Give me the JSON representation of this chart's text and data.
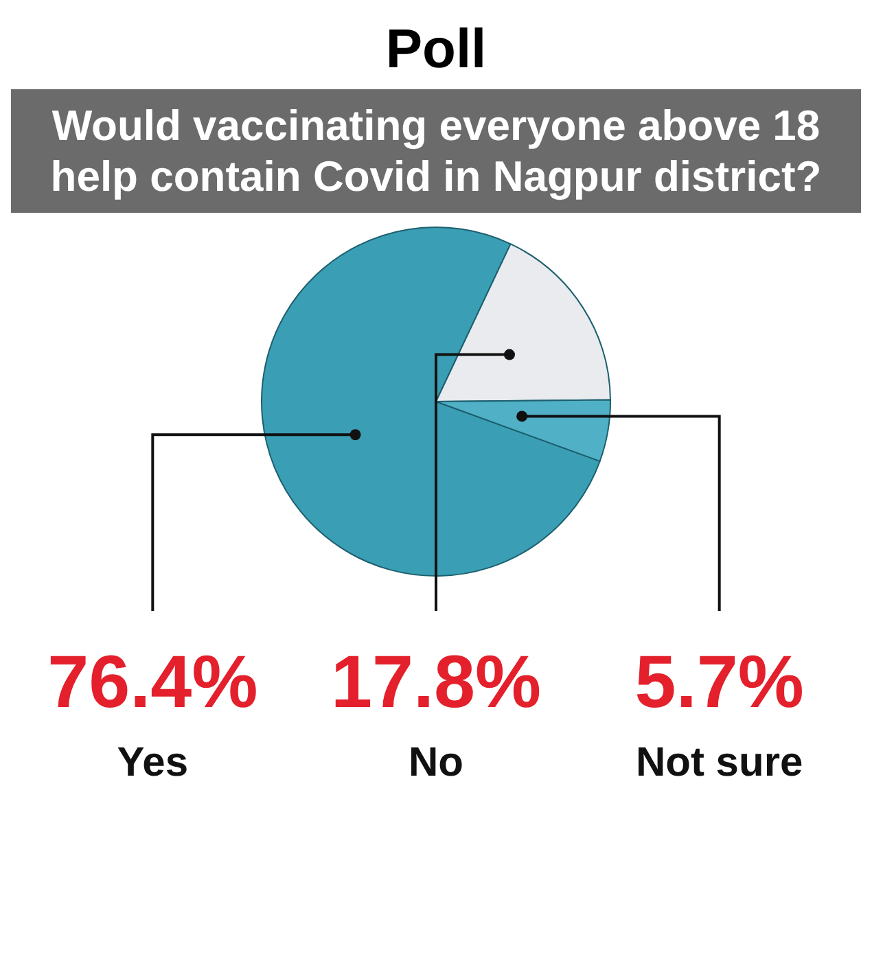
{
  "chart_data": {
    "type": "pie",
    "title": "Poll",
    "subtitle": "Would vaccinating everyone above 18 help contain Covid in Nagpur district?",
    "categories": [
      "Yes",
      "No",
      "Not sure"
    ],
    "values": [
      76.4,
      17.8,
      5.7
    ],
    "colors": [
      "#3a9fb5",
      "#e9ebef",
      "#4fb0c6"
    ],
    "value_labels": [
      "76.4%",
      "17.8%",
      "5.7%"
    ],
    "legend": false
  }
}
